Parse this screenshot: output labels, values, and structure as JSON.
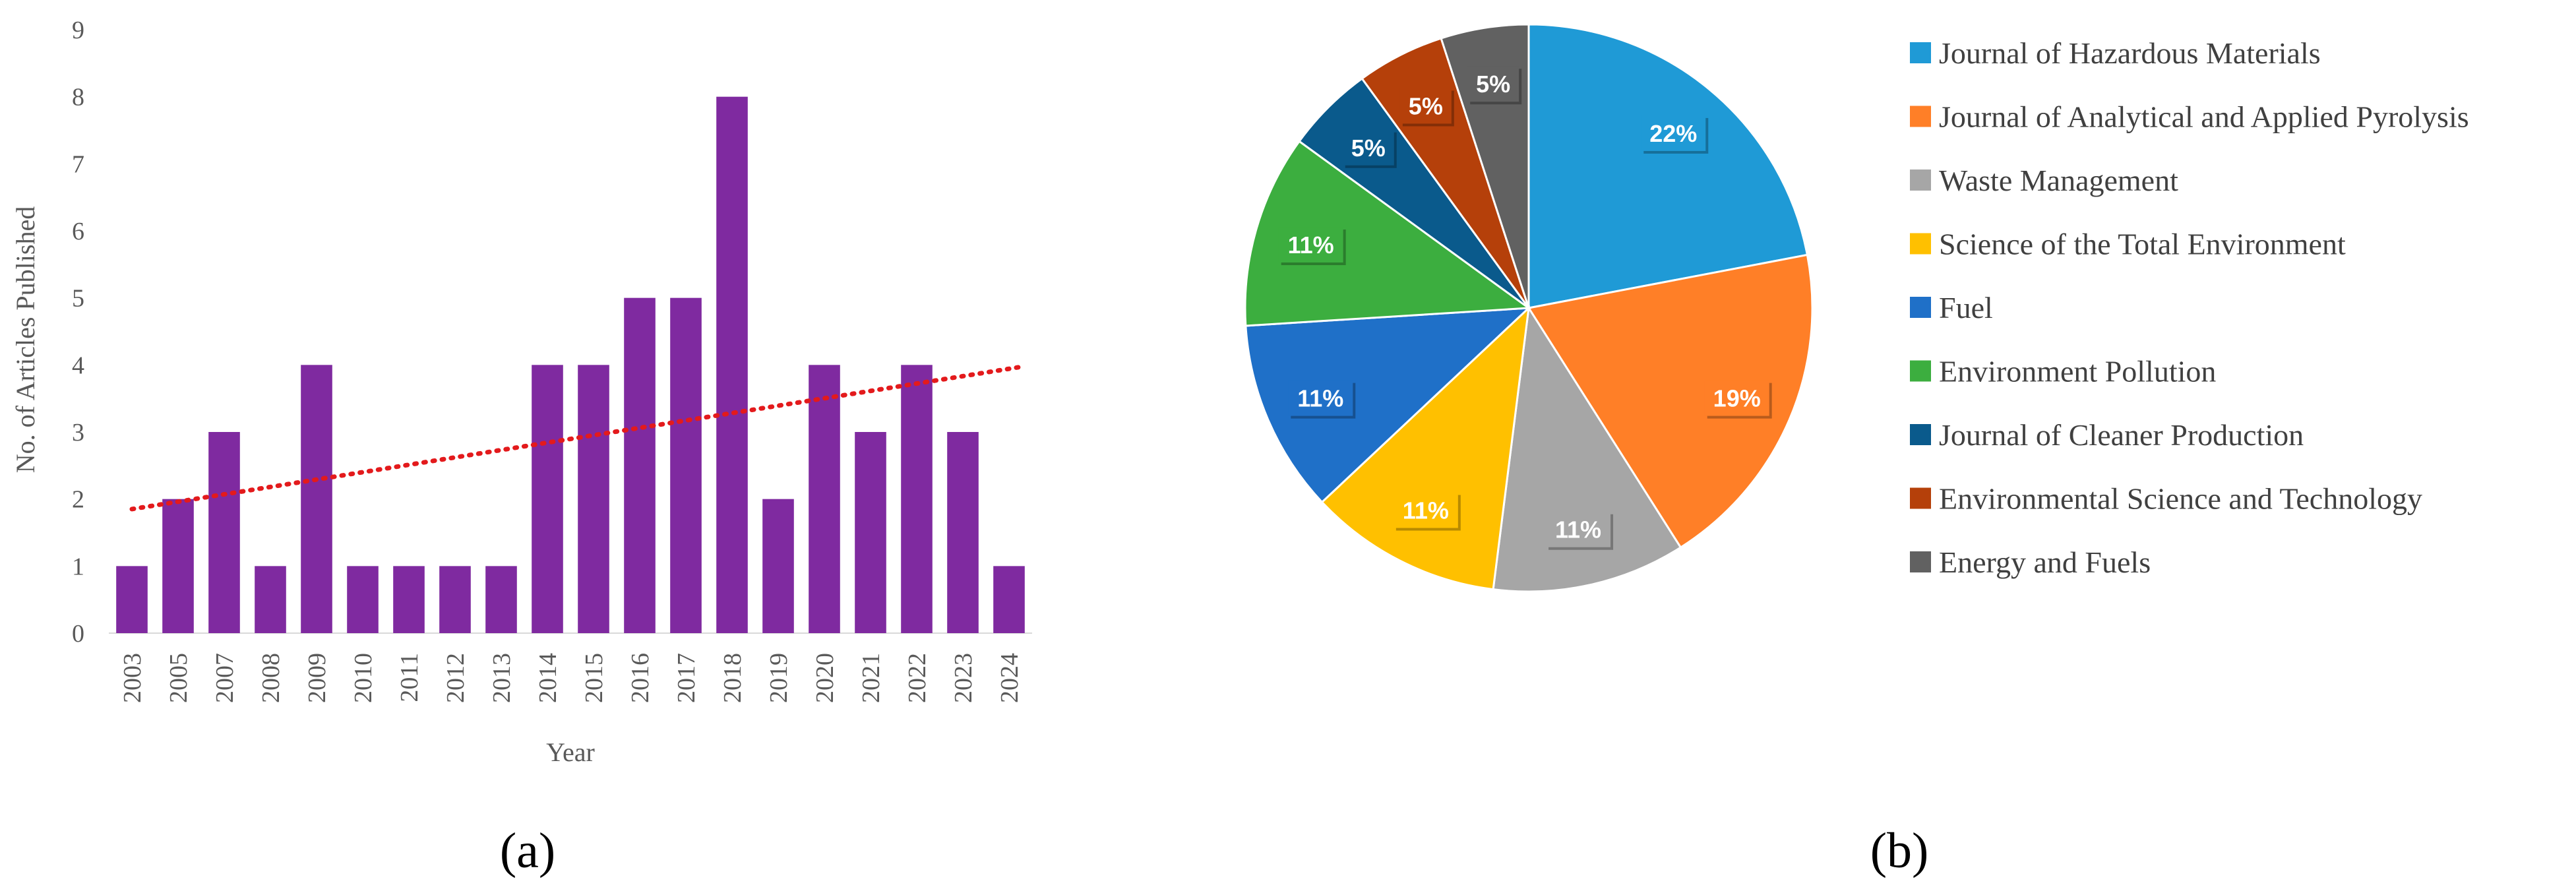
{
  "chart_data": [
    {
      "type": "bar",
      "panel_label": "(a)",
      "title": "",
      "xlabel": "Year",
      "ylabel": "No. of Articles Published",
      "ylim": [
        0,
        9
      ],
      "yticks": [
        "0",
        "1",
        "2",
        "3",
        "4",
        "5",
        "6",
        "7",
        "8",
        "9"
      ],
      "categories": [
        "2003",
        "2005",
        "2007",
        "2008",
        "2009",
        "2010",
        "2011",
        "2012",
        "2013",
        "2014",
        "2015",
        "2016",
        "2017",
        "2018",
        "2019",
        "2020",
        "2021",
        "2022",
        "2023",
        "2024"
      ],
      "values": [
        1,
        2,
        3,
        1,
        4,
        1,
        1,
        1,
        1,
        4,
        4,
        5,
        5,
        8,
        2,
        4,
        3,
        4,
        3,
        1
      ],
      "bar_color": "#7f2aa0",
      "trendline": {
        "style": "dotted linear",
        "color": "#e31a1c",
        "start": 1.85,
        "end": 3.98
      },
      "grid": false
    },
    {
      "type": "pie",
      "panel_label": "(b)",
      "title": "",
      "legend_position": "right",
      "slices": [
        {
          "name": "Journal of Hazardous Materials",
          "label": "22%",
          "value": 22,
          "color": "#1f9ad6"
        },
        {
          "name": "Journal of Analytical and Applied Pyrolysis",
          "label": "19%",
          "value": 19,
          "color": "#ff7f27"
        },
        {
          "name": "Waste Management",
          "label": "11%",
          "value": 11,
          "color": "#a6a6a6"
        },
        {
          "name": "Science of the Total Environment",
          "label": "11%",
          "value": 11,
          "color": "#ffc000"
        },
        {
          "name": "Fuel",
          "label": "11%",
          "value": 11,
          "color": "#1f70c8"
        },
        {
          "name": "Environment Pollution",
          "label": "11%",
          "value": 11,
          "color": "#3cae3f"
        },
        {
          "name": "Journal of Cleaner Production",
          "label": "5%",
          "value": 5,
          "color": "#0a5a8c"
        },
        {
          "name": "Environmental Science and Technology",
          "label": "5%",
          "value": 5,
          "color": "#b5400a"
        },
        {
          "name": "Energy and Fuels",
          "label": "5%",
          "value": 5,
          "color": "#616161"
        }
      ]
    }
  ]
}
